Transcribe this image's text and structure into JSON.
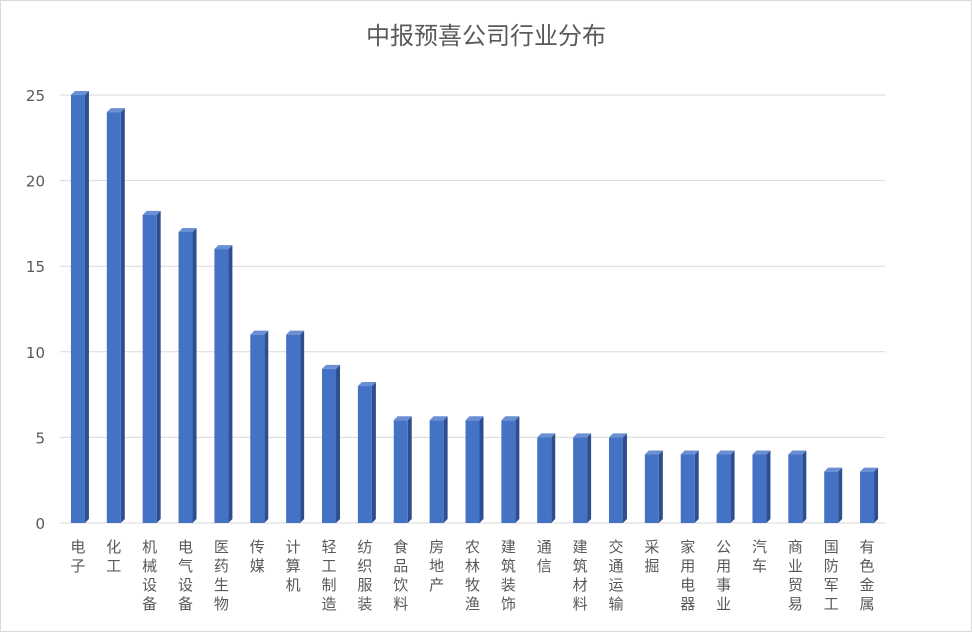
{
  "chart_data": {
    "type": "bar",
    "title": "中报预喜公司行业分布",
    "categories": [
      "电子",
      "化工",
      "机械设备",
      "电气设备",
      "医药生物",
      "传媒",
      "计算机",
      "轻工制造",
      "纺织服装",
      "食品饮料",
      "房地产",
      "农林牧渔",
      "建筑装饰",
      "通信",
      "建筑材料",
      "交通运输",
      "采掘",
      "家用电器",
      "公用事业",
      "汽车",
      "商业贸易",
      "国防军工",
      "有色金属"
    ],
    "values": [
      25,
      24,
      18,
      17,
      16,
      11,
      11,
      9,
      8,
      6,
      6,
      6,
      6,
      5,
      5,
      5,
      4,
      4,
      4,
      4,
      4,
      3,
      3
    ],
    "ylim": [
      0,
      25
    ],
    "yticks": [
      "0",
      "5",
      "10",
      "15",
      "20",
      "25"
    ],
    "grid": true,
    "legend": "none",
    "colors": {
      "bar_front": "#4472c4",
      "bar_side": "#2e4f8f",
      "bar_top": "#6a8fd3",
      "grid": "#d9d9d9",
      "text": "#595959"
    }
  }
}
